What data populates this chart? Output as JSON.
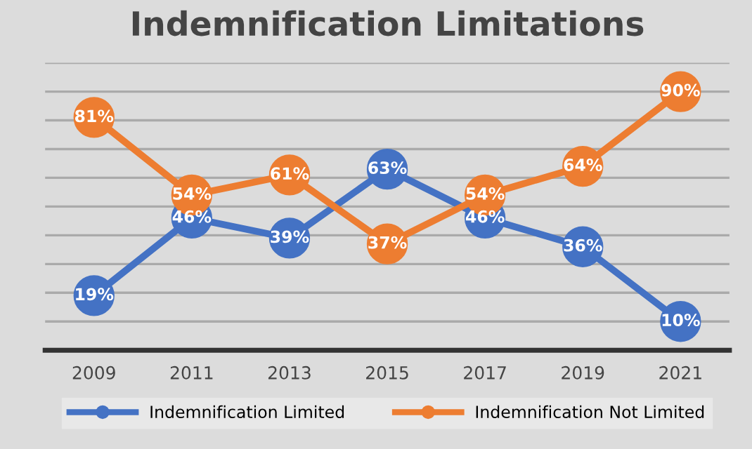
{
  "chart_data": {
    "type": "line",
    "title": "Indemnification Limitations",
    "categories": [
      "2009",
      "2011",
      "2013",
      "2015",
      "2017",
      "2019",
      "2021"
    ],
    "series": [
      {
        "name": "Indemnification Limited",
        "color": "#4472c4",
        "values": [
          19,
          46,
          39,
          63,
          46,
          36,
          10
        ],
        "value_labels": [
          "19%",
          "46%",
          "39%",
          "63%",
          "46%",
          "36%",
          "10%"
        ]
      },
      {
        "name": "Indemnification Not Limited",
        "color": "#ed7d31",
        "values": [
          81,
          54,
          61,
          37,
          54,
          64,
          90
        ],
        "value_labels": [
          "81%",
          "54%",
          "61%",
          "37%",
          "54%",
          "64%",
          "90%"
        ]
      }
    ],
    "ylim": [
      0,
      100
    ],
    "yticks": [
      {
        "value": 0,
        "label": null
      },
      {
        "value": 10,
        "label": null
      },
      {
        "value": 20,
        "label": null
      },
      {
        "value": 30,
        "label": null
      },
      {
        "value": 40,
        "label": null
      },
      {
        "value": 50,
        "label": null
      },
      {
        "value": 60,
        "label": null
      },
      {
        "value": 70,
        "label": null
      },
      {
        "value": 80,
        "label": null
      },
      {
        "value": 90,
        "label": null
      },
      {
        "value": 100,
        "label": null
      }
    ],
    "tick_labels": "x",
    "grid": "y",
    "legend": "bottom",
    "marker": "circle",
    "line_style": "solid"
  }
}
